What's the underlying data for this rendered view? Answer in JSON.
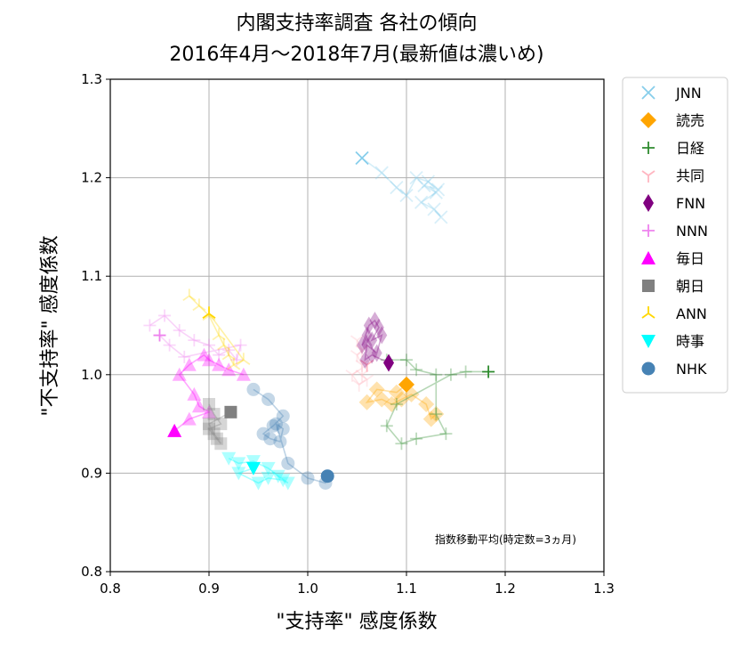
{
  "chart_data": {
    "type": "scatter",
    "title_line1": "内閣支持率調査 各社の傾向",
    "title_line2": "2016年4月〜2018年7月(最新値は濃いめ)",
    "xlabel": "\"支持率\" 感度係数",
    "ylabel": "\"不支持率\" 感度係数",
    "annotation": "指数移動平均(時定数=3ヵ月)",
    "xlim": [
      0.8,
      1.3
    ],
    "ylim": [
      0.8,
      1.3
    ],
    "xticks": [
      "0.8",
      "0.9",
      "1.0",
      "1.1",
      "1.2",
      "1.3"
    ],
    "yticks": [
      "0.8",
      "0.9",
      "1.0",
      "1.1",
      "1.2",
      "1.3"
    ],
    "grid": true,
    "legend_position": "outside-right",
    "series": [
      {
        "name": "JNN",
        "marker": "x",
        "color": "#87ceeb",
        "points": [
          [
            1.135,
            1.16
          ],
          [
            1.128,
            1.168
          ],
          [
            1.115,
            1.175
          ],
          [
            1.13,
            1.185
          ],
          [
            1.118,
            1.192
          ],
          [
            1.132,
            1.188
          ],
          [
            1.122,
            1.196
          ],
          [
            1.11,
            1.2
          ],
          [
            1.1,
            1.182
          ],
          [
            1.09,
            1.19
          ],
          [
            1.075,
            1.205
          ],
          [
            1.055,
            1.22
          ]
        ]
      },
      {
        "name": "読売",
        "marker": "D",
        "color": "#ffa500",
        "points": [
          [
            1.13,
            0.96
          ],
          [
            1.125,
            0.955
          ],
          [
            1.12,
            0.97
          ],
          [
            1.105,
            0.98
          ],
          [
            1.095,
            0.975
          ],
          [
            1.085,
            0.97
          ],
          [
            1.075,
            0.975
          ],
          [
            1.06,
            0.972
          ],
          [
            1.07,
            0.985
          ],
          [
            1.09,
            0.982
          ],
          [
            1.1,
            0.99
          ],
          [
            1.1,
            0.99
          ]
        ]
      },
      {
        "name": "日経",
        "marker": "+",
        "color": "#2e8b2e",
        "points": [
          [
            1.08,
            1.015
          ],
          [
            1.1,
            1.015
          ],
          [
            1.11,
            1.005
          ],
          [
            1.13,
            1.0
          ],
          [
            1.13,
            0.96
          ],
          [
            1.14,
            0.94
          ],
          [
            1.11,
            0.935
          ],
          [
            1.095,
            0.93
          ],
          [
            1.08,
            0.948
          ],
          [
            1.09,
            0.97
          ],
          [
            1.145,
            1.0
          ],
          [
            1.16,
            1.003
          ],
          [
            1.183,
            1.003
          ]
        ]
      },
      {
        "name": "共同",
        "marker": "1",
        "color": "#ffb6c1",
        "points": [
          [
            1.05,
            1.035
          ],
          [
            1.055,
            1.025
          ],
          [
            1.05,
            1.02
          ],
          [
            1.055,
            1.01
          ],
          [
            1.055,
            1.0
          ],
          [
            1.06,
            0.995
          ],
          [
            1.052,
            0.99
          ],
          [
            1.045,
            1.0
          ],
          [
            1.06,
            1.01
          ]
        ]
      },
      {
        "name": "FNN",
        "marker": "d",
        "color": "#800080",
        "points": [
          [
            1.06,
            1.04
          ],
          [
            1.055,
            1.03
          ],
          [
            1.062,
            1.05
          ],
          [
            1.068,
            1.055
          ],
          [
            1.072,
            1.048
          ],
          [
            1.065,
            1.035
          ],
          [
            1.075,
            1.04
          ],
          [
            1.07,
            1.022
          ],
          [
            1.06,
            1.03
          ],
          [
            1.058,
            1.015
          ],
          [
            1.065,
            1.02
          ],
          [
            1.082,
            1.012
          ]
        ]
      },
      {
        "name": "NNN",
        "marker": "+",
        "color": "#ee82ee",
        "points": [
          [
            0.84,
            1.05
          ],
          [
            0.855,
            1.06
          ],
          [
            0.87,
            1.045
          ],
          [
            0.885,
            1.035
          ],
          [
            0.9,
            1.03
          ],
          [
            0.91,
            1.02
          ],
          [
            0.92,
            1.025
          ],
          [
            0.928,
            1.015
          ],
          [
            0.932,
            1.03
          ],
          [
            0.875,
            1.018
          ],
          [
            0.86,
            1.03
          ],
          [
            0.85,
            1.04
          ]
        ]
      },
      {
        "name": "毎日",
        "marker": "^",
        "color": "#ff00ff",
        "points": [
          [
            0.935,
            1.0
          ],
          [
            0.92,
            1.005
          ],
          [
            0.91,
            1.01
          ],
          [
            0.9,
            1.015
          ],
          [
            0.895,
            1.02
          ],
          [
            0.88,
            1.01
          ],
          [
            0.87,
            1.0
          ],
          [
            0.885,
            0.98
          ],
          [
            0.89,
            0.968
          ],
          [
            0.9,
            0.962
          ],
          [
            0.88,
            0.955
          ],
          [
            0.865,
            0.943
          ]
        ]
      },
      {
        "name": "朝日",
        "marker": "s",
        "color": "#808080",
        "points": [
          [
            0.9,
            0.97
          ],
          [
            0.905,
            0.96
          ],
          [
            0.912,
            0.95
          ],
          [
            0.9,
            0.945
          ],
          [
            0.908,
            0.935
          ],
          [
            0.912,
            0.93
          ],
          [
            0.905,
            0.94
          ],
          [
            0.9,
            0.95
          ],
          [
            0.922,
            0.962
          ]
        ]
      },
      {
        "name": "ANN",
        "marker": "2",
        "color": "#ffd700",
        "points": [
          [
            0.88,
            1.08
          ],
          [
            0.89,
            1.07
          ],
          [
            0.9,
            1.06
          ],
          [
            0.91,
            1.04
          ],
          [
            0.92,
            1.02
          ],
          [
            0.915,
            1.03
          ],
          [
            0.925,
            1.01
          ],
          [
            0.935,
            1.015
          ],
          [
            0.9,
            1.062
          ]
        ]
      },
      {
        "name": "時事",
        "marker": "v",
        "color": "#00ffff",
        "points": [
          [
            0.92,
            0.915
          ],
          [
            0.93,
            0.91
          ],
          [
            0.945,
            0.912
          ],
          [
            0.96,
            0.905
          ],
          [
            0.97,
            0.897
          ],
          [
            0.98,
            0.89
          ],
          [
            0.975,
            0.893
          ],
          [
            0.96,
            0.895
          ],
          [
            0.95,
            0.89
          ],
          [
            0.93,
            0.9
          ],
          [
            0.945,
            0.905
          ]
        ]
      },
      {
        "name": "NHK",
        "marker": "o",
        "color": "#4682b4",
        "points": [
          [
            0.945,
            0.985
          ],
          [
            0.96,
            0.975
          ],
          [
            0.975,
            0.958
          ],
          [
            0.965,
            0.948
          ],
          [
            0.955,
            0.94
          ],
          [
            0.962,
            0.935
          ],
          [
            0.972,
            0.932
          ],
          [
            0.975,
            0.945
          ],
          [
            0.968,
            0.95
          ],
          [
            0.98,
            0.91
          ],
          [
            1.0,
            0.895
          ],
          [
            1.018,
            0.89
          ],
          [
            1.02,
            0.897
          ]
        ]
      }
    ]
  }
}
